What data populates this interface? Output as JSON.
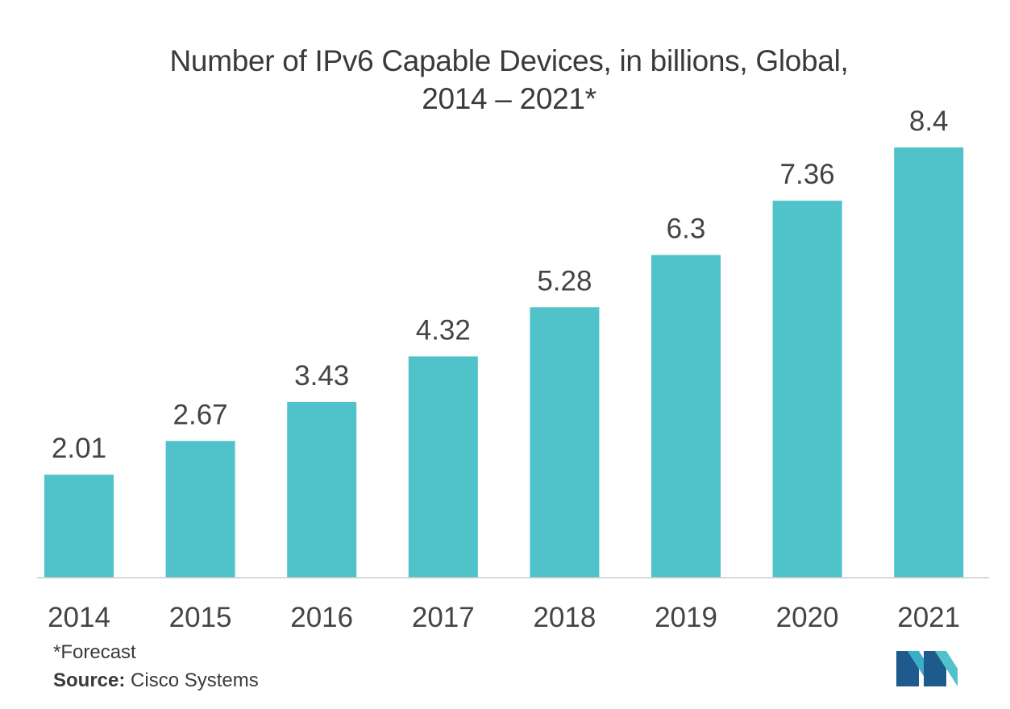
{
  "chart_data": {
    "type": "bar",
    "title_line1": "Number of IPv6 Capable Devices, in billions, Global,",
    "title_line2": "2014 – 2021*",
    "categories": [
      "2014",
      "2015",
      "2016",
      "2017",
      "2018",
      "2019",
      "2020",
      "2021"
    ],
    "values": [
      2.01,
      2.67,
      3.43,
      4.32,
      5.28,
      6.3,
      7.36,
      8.4
    ],
    "value_labels": [
      "2.01",
      "2.67",
      "3.43",
      "4.32",
      "5.28",
      "6.3",
      "7.36",
      "8.4"
    ],
    "xlabel": "",
    "ylabel": "",
    "ylim": [
      0,
      8.4
    ],
    "grid": false,
    "legend": "none",
    "bar_color": "#50c3ca"
  },
  "footer": {
    "footnote": "*Forecast",
    "source_label": "Source:",
    "source_text": " Cisco Systems"
  },
  "logo": {
    "icon": "mordor-intelligence-logo-icon",
    "colors": [
      "#1e5a8c",
      "#3ab0c8",
      "#50c3ca"
    ]
  }
}
